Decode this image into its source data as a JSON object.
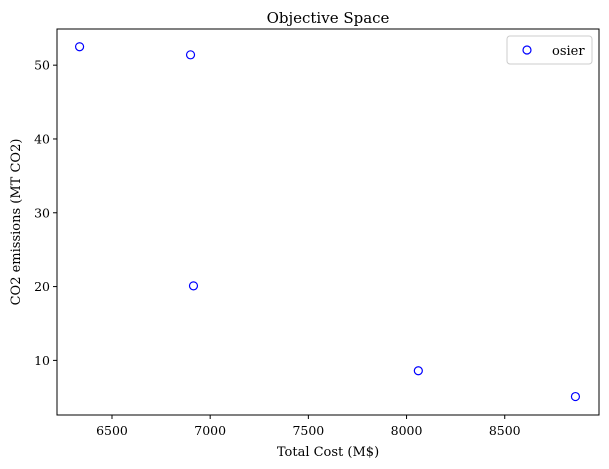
{
  "chart_data": {
    "type": "scatter",
    "title": "Objective Space",
    "xlabel": "Total Cost (M$)",
    "ylabel": "CO2 emissions (MT CO2)",
    "xlim": [
      6220,
      8980
    ],
    "ylim": [
      2.6,
      54.9
    ],
    "xticks": [
      6500,
      7000,
      7500,
      8000,
      8500
    ],
    "yticks": [
      10,
      20,
      30,
      40,
      50
    ],
    "grid": false,
    "legend_position": "top-right",
    "series": [
      {
        "name": "osier",
        "marker": "open-circle",
        "color": "#0000ff",
        "points": [
          {
            "x": 6335,
            "y": 52.5
          },
          {
            "x": 6900,
            "y": 51.4
          },
          {
            "x": 6915,
            "y": 20.1
          },
          {
            "x": 8060,
            "y": 8.6
          },
          {
            "x": 8860,
            "y": 5.1
          }
        ]
      }
    ]
  }
}
